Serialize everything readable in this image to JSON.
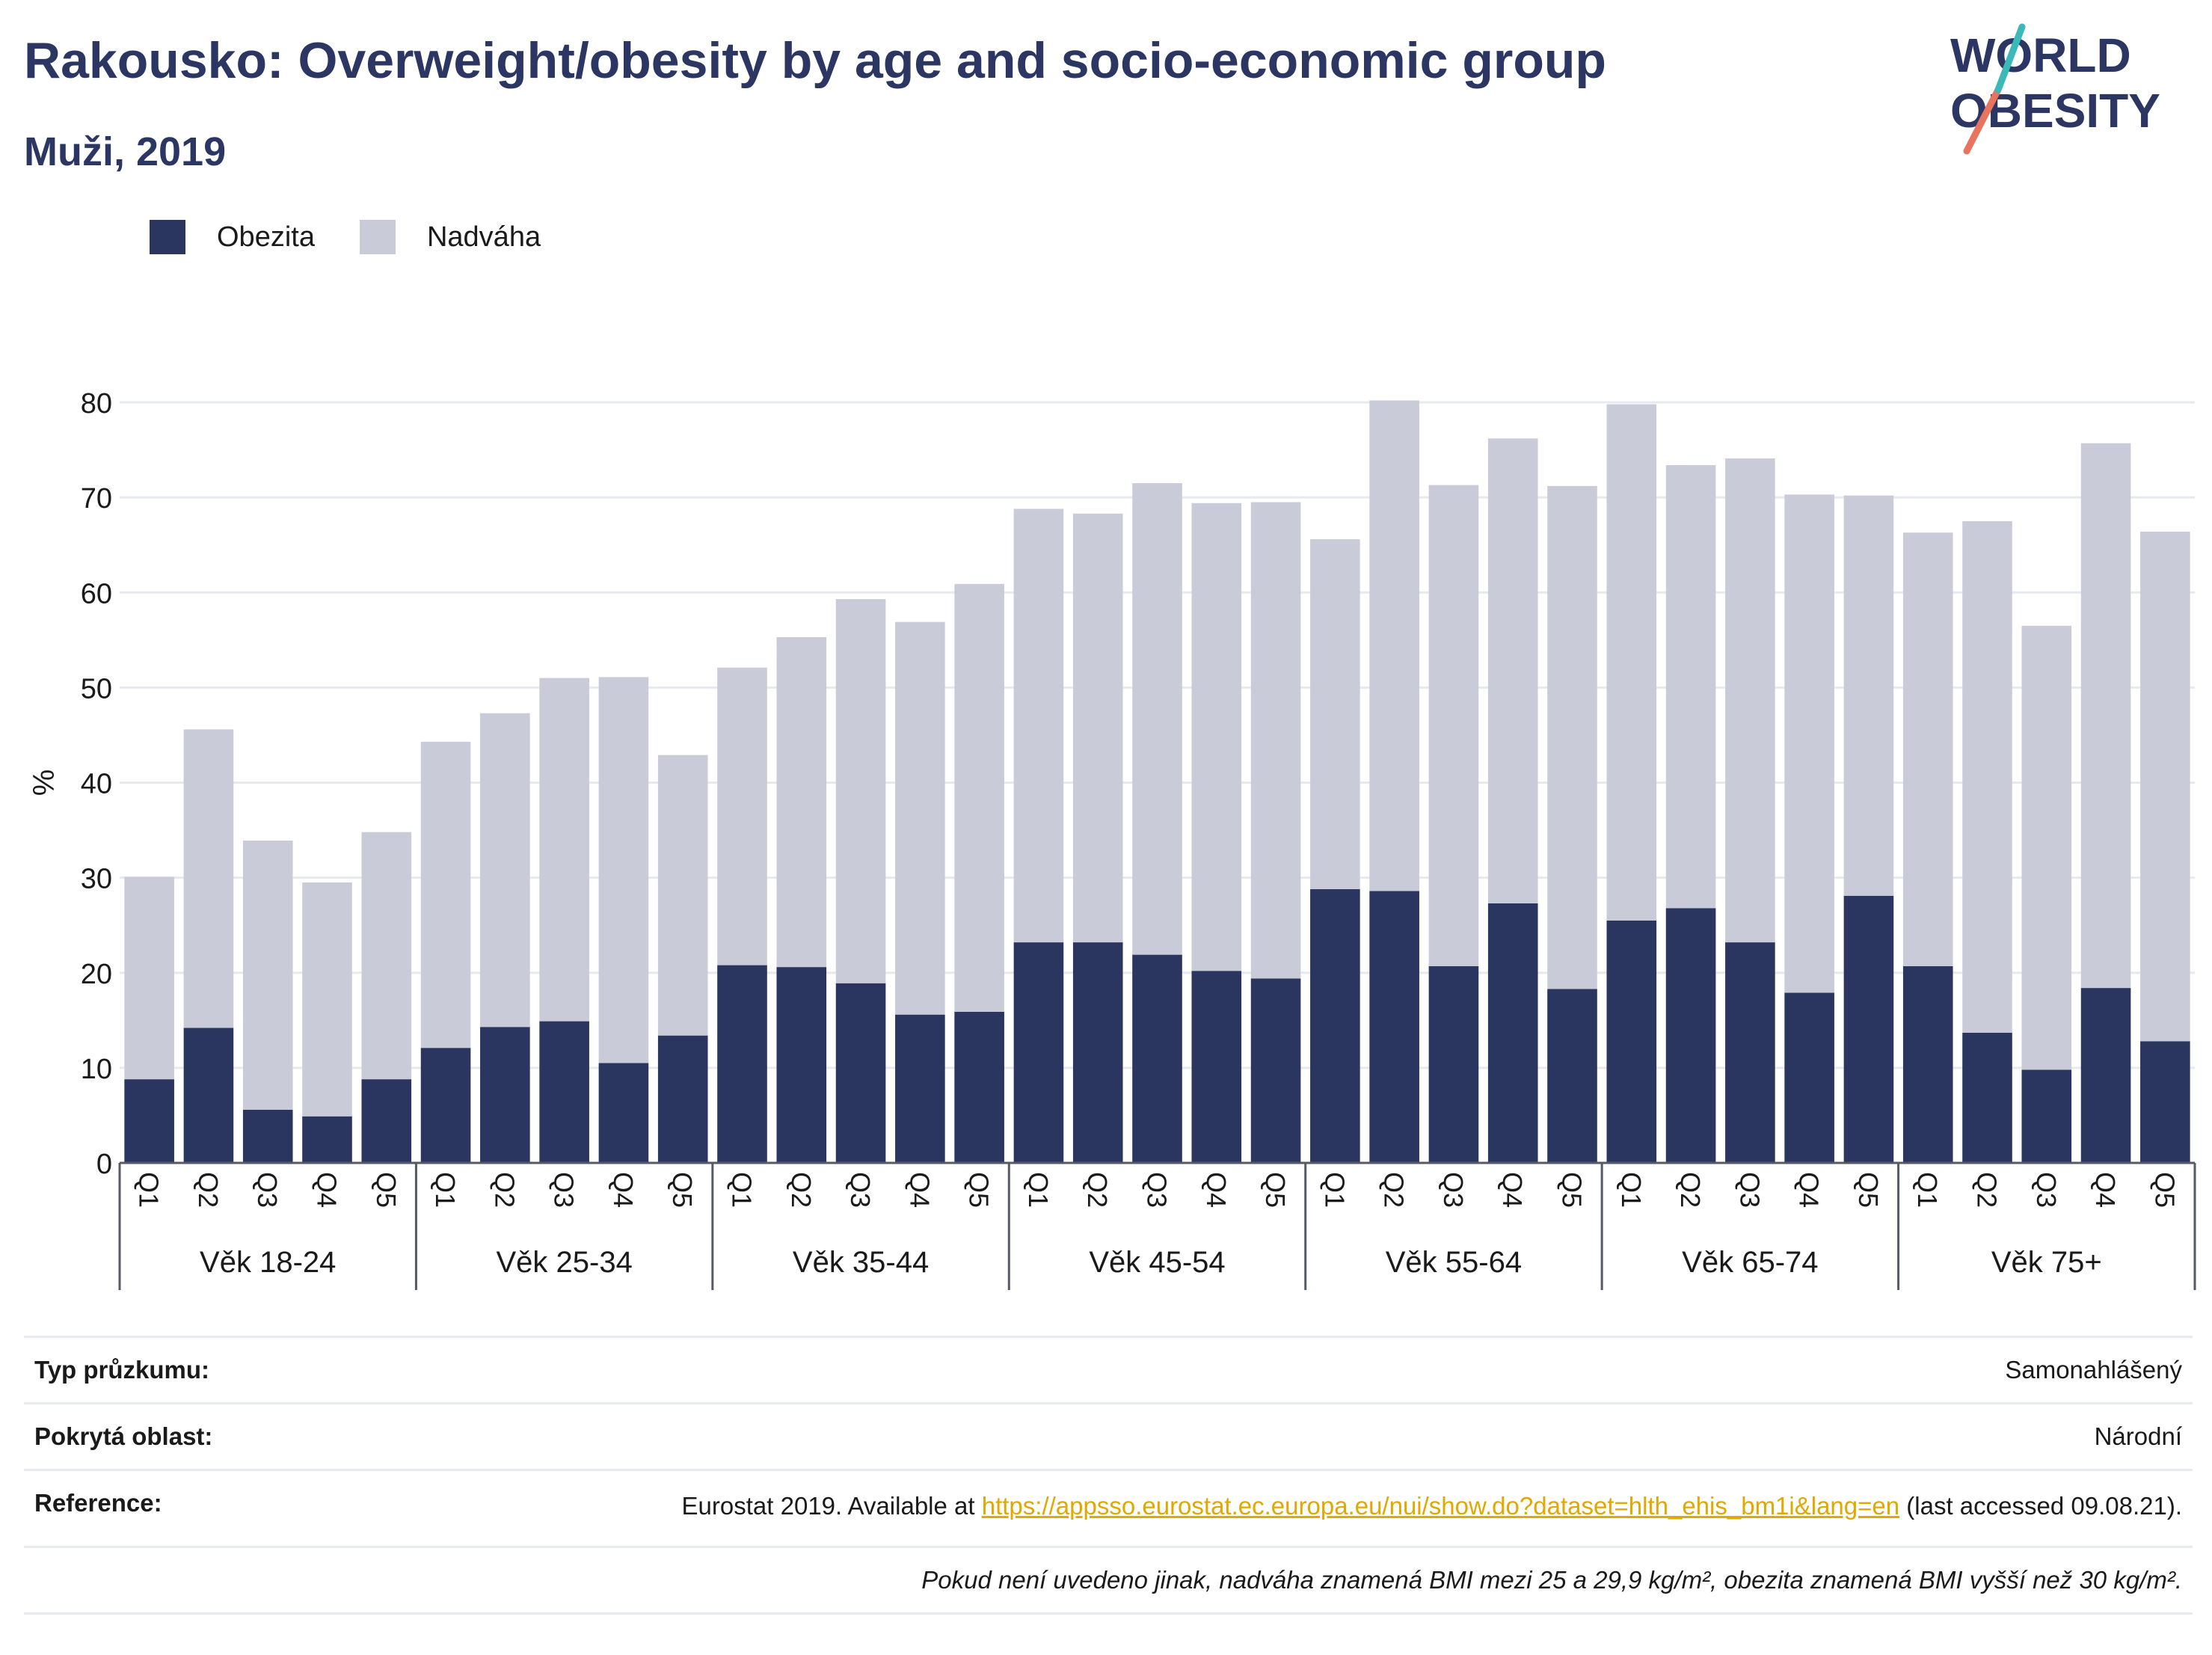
{
  "title": "Rakousko: Overweight/obesity by age and socio-economic group",
  "subtitle": "Muži, 2019",
  "logo": {
    "line1": "WORLD",
    "line2": "OBESITY"
  },
  "legend": [
    {
      "label": "Obezita",
      "color": "#2a3560"
    },
    {
      "label": "Nadváha",
      "color": "#c9ccd8"
    }
  ],
  "chart_data": {
    "type": "bar",
    "stacked": true,
    "ylabel": "%",
    "ylim": [
      0,
      80
    ],
    "yticks": [
      0,
      10,
      20,
      30,
      40,
      50,
      60,
      70,
      80
    ],
    "grid": true,
    "legend_position": "top-left",
    "groups": [
      "Věk 18-24",
      "Věk 25-34",
      "Věk 35-44",
      "Věk 45-54",
      "Věk 55-64",
      "Věk 65-74",
      "Věk 75+"
    ],
    "subcategories": [
      "Q1",
      "Q2",
      "Q3",
      "Q4",
      "Q5"
    ],
    "series": [
      {
        "name": "Obezita",
        "color": "#2a3560",
        "values": [
          8.8,
          14.2,
          5.6,
          4.9,
          8.8,
          12.1,
          14.3,
          14.9,
          10.5,
          13.4,
          20.8,
          20.6,
          18.9,
          15.6,
          15.9,
          23.2,
          23.2,
          21.9,
          20.2,
          19.4,
          28.8,
          28.6,
          20.7,
          27.3,
          18.3,
          25.5,
          26.8,
          23.2,
          17.9,
          28.1,
          20.7,
          13.7,
          9.8,
          18.4,
          12.8
        ]
      },
      {
        "name": "Nadváha",
        "color": "#c9ccd8",
        "values": [
          21.3,
          31.4,
          28.3,
          24.6,
          26.0,
          32.2,
          33.0,
          36.1,
          40.6,
          29.5,
          31.3,
          34.7,
          40.4,
          41.3,
          45.0,
          45.6,
          45.1,
          49.6,
          49.2,
          50.1,
          36.8,
          51.6,
          50.6,
          48.9,
          52.9,
          54.3,
          46.6,
          50.9,
          52.4,
          42.1,
          45.6,
          53.8,
          46.7,
          57.3,
          53.6
        ]
      }
    ]
  },
  "info": {
    "survey_type_label": "Typ průzkumu:",
    "survey_type_value": "Samonahlášený",
    "coverage_label": "Pokrytá oblast:",
    "coverage_value": "Národní",
    "reference_label": "Reference:",
    "reference_prefix": "Eurostat 2019. Available at ",
    "reference_link": "https://appsso.eurostat.ec.europa.eu/nui/show.do?dataset=hlth_ehis_bm1i&lang=en",
    "reference_suffix": " (last accessed 09.08.21).",
    "note": "Pokud není uvedeno jinak, nadváha znamená BMI mezi 25 a 29,9 kg/m², obezita znamená BMI vyšší než 30 kg/m²."
  }
}
